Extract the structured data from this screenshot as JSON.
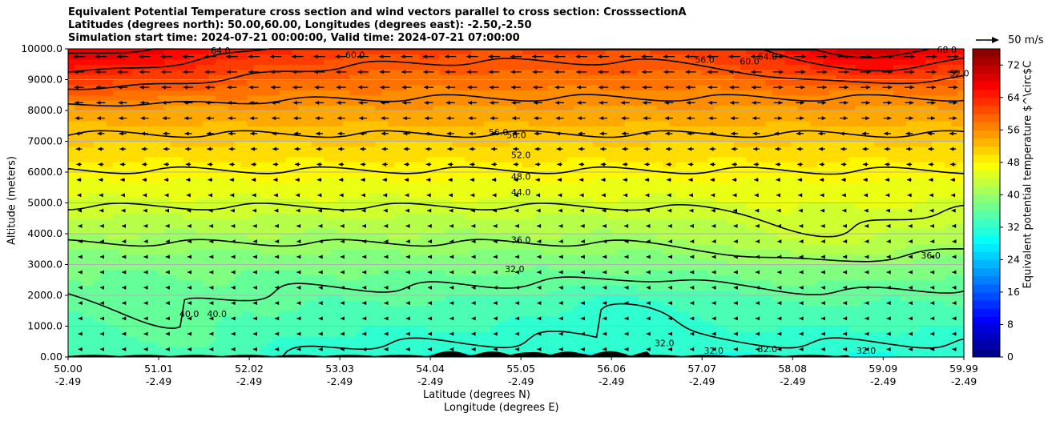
{
  "titles": {
    "line1": "Equivalent Potential Temperature cross section and wind vectors parallel to cross section: CrosssectionA",
    "line2": "Latitudes (degrees north): 50.00,60.00, Longitudes (degrees east): -2.50,-2.50",
    "line3": "Simulation start time: 2024-07-21 00:00:00, Valid time: 2024-07-21 07:00:00"
  },
  "chart_data": {
    "type": "heatmap",
    "variable": "equivalent potential temperature",
    "ylabel": "Altitude (meters)",
    "xlabel_line1": "Latitude (degrees N)",
    "xlabel_line2": "Longitude (degrees E)",
    "ylim": [
      0,
      10000
    ],
    "xlim": [
      50.0,
      59.99
    ],
    "y_ticks": [
      0,
      1000,
      2000,
      3000,
      4000,
      5000,
      6000,
      7000,
      8000,
      9000,
      10000
    ],
    "y_tick_labels": [
      "0.00",
      "1000.0",
      "2000.0",
      "3000.0",
      "4000.0",
      "5000.0",
      "6000.0",
      "7000.0",
      "8000.0",
      "9000.0",
      "10000.0"
    ],
    "x_ticks": [
      50.0,
      51.01,
      52.02,
      53.03,
      54.04,
      55.05,
      56.06,
      57.07,
      58.08,
      59.09,
      59.99
    ],
    "x_tick_labels_lat": [
      "50.00",
      "51.01",
      "52.02",
      "53.03",
      "54.04",
      "55.05",
      "56.06",
      "57.07",
      "58.08",
      "59.09",
      "59.99"
    ],
    "x_tick_labels_lon": [
      "-2.49",
      "-2.49",
      "-2.49",
      "-2.49",
      "-2.49",
      "-2.49",
      "-2.49",
      "-2.49",
      "-2.49",
      "-2.49",
      "-2.49"
    ],
    "grid": "horizontal",
    "colorbar": {
      "label": "Equivalent potential temperature $^\\circ$C",
      "range": [
        0,
        76
      ],
      "ticks": [
        0,
        8,
        16,
        24,
        32,
        40,
        48,
        56,
        64,
        72
      ],
      "colormap": "jet"
    },
    "contour_levels": [
      32,
      36,
      40,
      44,
      48,
      52,
      56,
      60,
      64,
      68
    ],
    "contour_labels": [
      {
        "text": "60.0",
        "lat": 53.2,
        "alt": 9700
      },
      {
        "text": "64.0",
        "lat": 51.7,
        "alt": 9850
      },
      {
        "text": "56.0",
        "lat": 57.1,
        "alt": 9550
      },
      {
        "text": "60.0",
        "lat": 57.6,
        "alt": 9500
      },
      {
        "text": "64.0",
        "lat": 57.8,
        "alt": 9650
      },
      {
        "text": "68.0",
        "lat": 59.8,
        "alt": 9870
      },
      {
        "text": "52.0",
        "lat": 59.94,
        "alt": 9100
      },
      {
        "text": "56.0",
        "lat": 54.8,
        "alt": 7200
      },
      {
        "text": "56.0",
        "lat": 55.0,
        "alt": 7100
      },
      {
        "text": "52.0",
        "lat": 55.05,
        "alt": 6450
      },
      {
        "text": "48.0",
        "lat": 55.05,
        "alt": 5750
      },
      {
        "text": "44.0",
        "lat": 55.05,
        "alt": 5250
      },
      {
        "text": "36.0",
        "lat": 55.05,
        "alt": 3700
      },
      {
        "text": "32.0",
        "lat": 54.98,
        "alt": 2750
      },
      {
        "text": "36.0",
        "lat": 59.62,
        "alt": 3200
      },
      {
        "text": "40.0",
        "lat": 51.35,
        "alt": 1300
      },
      {
        "text": "40.0",
        "lat": 51.66,
        "alt": 1300
      },
      {
        "text": "32.0",
        "lat": 56.65,
        "alt": 350
      },
      {
        "text": "32.0",
        "lat": 57.2,
        "alt": 100
      },
      {
        "text": "32.0",
        "lat": 57.8,
        "alt": 150
      },
      {
        "text": "32.0",
        "lat": 58.9,
        "alt": 100
      }
    ],
    "wind_reference": {
      "label": "50 m/s",
      "speed": 50
    }
  }
}
